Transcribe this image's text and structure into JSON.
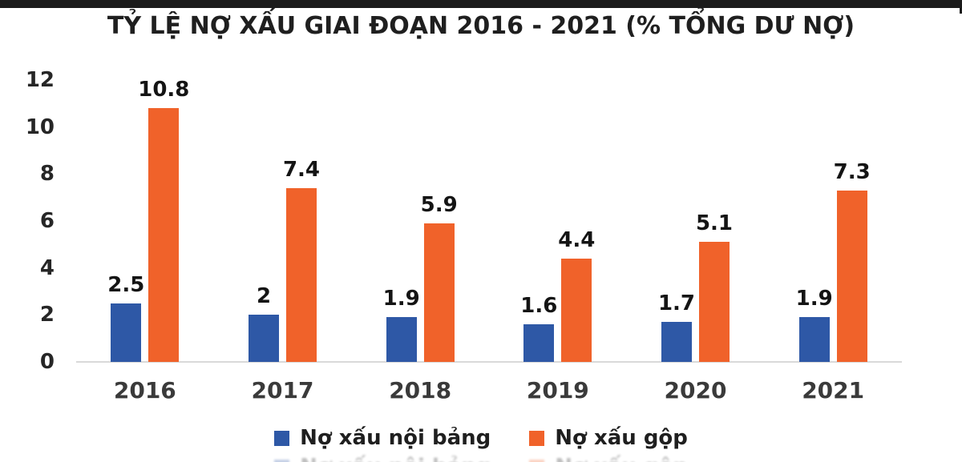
{
  "page": {
    "top_bar_color": "#1b1b1b",
    "background_color": "#ffffff",
    "text_color": "#1f1f1f",
    "axis_line_color": "#d9d9d9"
  },
  "chart_data": {
    "type": "bar",
    "title": "TỶ LỆ NỢ XẤU GIAI ĐOẠN 2016 - 2021 (% TỔNG DƯ NỢ)",
    "categories": [
      "2016",
      "2017",
      "2018",
      "2019",
      "2020",
      "2021"
    ],
    "series": [
      {
        "name": "Nợ xấu nội bảng",
        "color": "#2e58a6",
        "values": [
          2.5,
          2,
          1.9,
          1.6,
          1.7,
          1.9
        ],
        "value_labels": [
          "2.5",
          "2",
          "1.9",
          "1.6",
          "1.7",
          "1.9"
        ]
      },
      {
        "name": "Nợ xấu gộp",
        "color": "#f0622a",
        "values": [
          10.8,
          7.4,
          5.9,
          4.4,
          5.1,
          7.3
        ],
        "value_labels": [
          "10.8",
          "7.4",
          "5.9",
          "4.4",
          "5.1",
          "7.3"
        ]
      }
    ],
    "y_axis": {
      "min": 0,
      "max": 12,
      "ticks": [
        12,
        10,
        8,
        6,
        4,
        2,
        0
      ]
    },
    "xlabel": "",
    "ylabel": "",
    "grid": false,
    "legend_position": "bottom"
  }
}
